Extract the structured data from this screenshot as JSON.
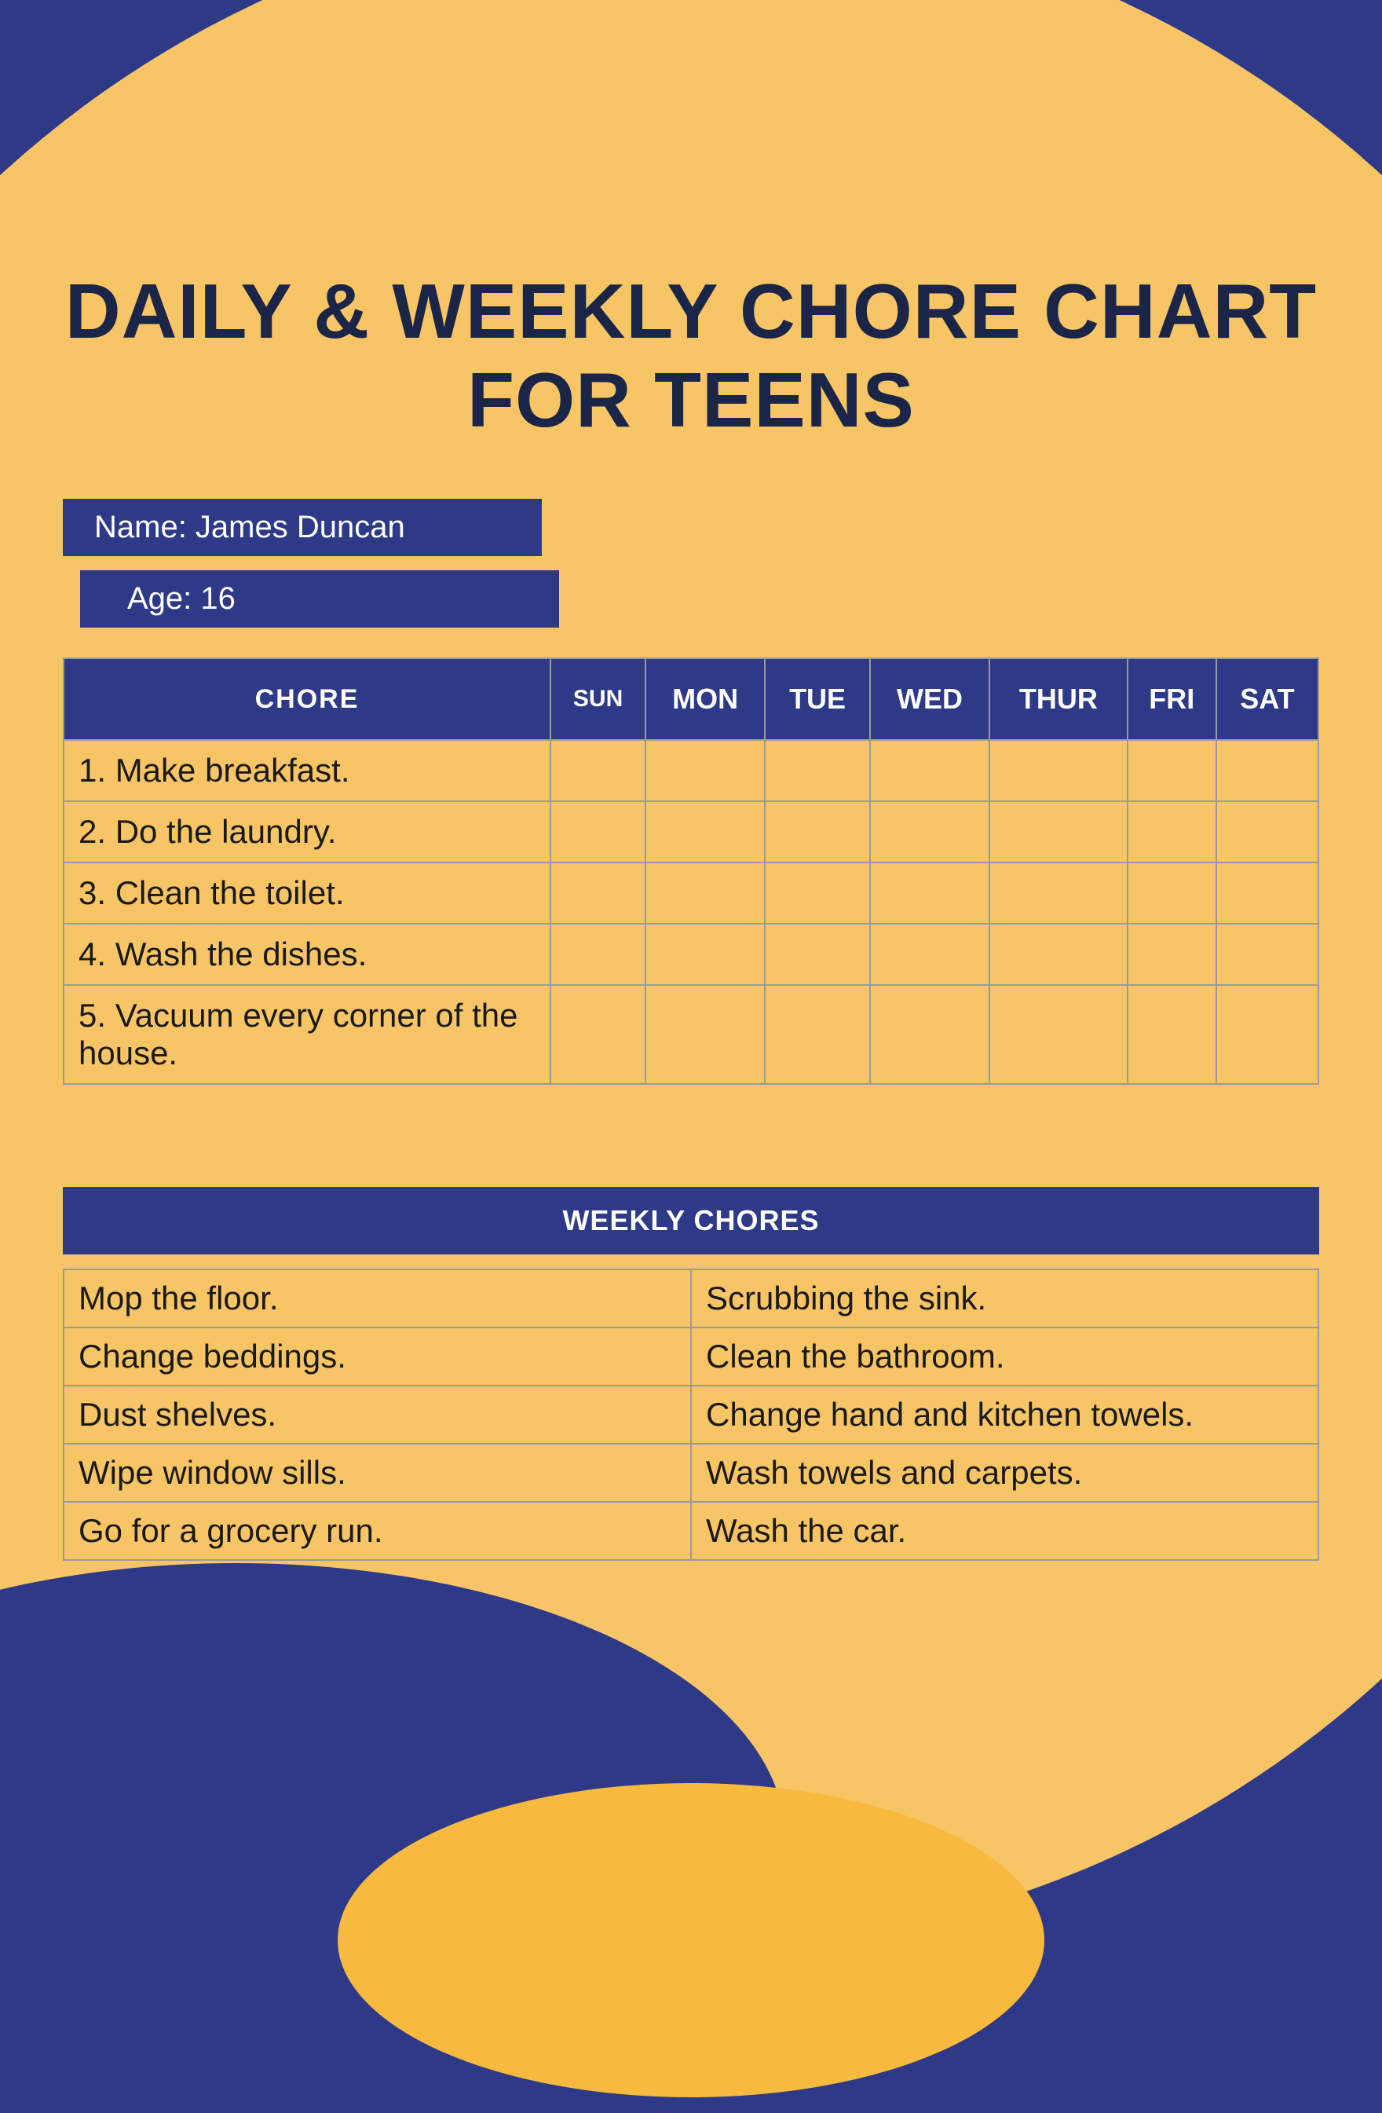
{
  "colors": {
    "navy": "#2e3a87",
    "orange": "#f8c566",
    "orange_dark": "#f7b93e",
    "title_text": "#1a2547",
    "cell_border": "#9a9a9a",
    "body_text": "#1a1a1a",
    "white": "#ffffff"
  },
  "typography": {
    "title_fontsize": 98,
    "title_weight": 900,
    "info_fontsize": 40,
    "header_fontsize": 36,
    "cell_fontsize": 42
  },
  "title": "DAILY & WEEKLY CHORE CHART FOR TEENS",
  "info": {
    "name_label": "Name: James Duncan",
    "age_label": "Age: 16"
  },
  "daily": {
    "columns": [
      "CHORE",
      "SUN",
      "MON",
      "TUE",
      "WED",
      "THUR",
      "FRI",
      "SAT"
    ],
    "chores": [
      "1. Make breakfast.",
      "2. Do the laundry.",
      "3. Clean the toilet.",
      "4. Wash the dishes.",
      "5. Vacuum every corner of the house."
    ]
  },
  "weekly": {
    "header": "WEEKLY CHORES",
    "rows": [
      [
        "Mop the floor.",
        "Scrubbing the sink."
      ],
      [
        "Change beddings.",
        "Clean the bathroom."
      ],
      [
        "Dust shelves.",
        "Change hand and kitchen towels."
      ],
      [
        "Wipe window sills.",
        "Wash towels and carpets."
      ],
      [
        "Go for a grocery run.",
        "Wash the car."
      ]
    ]
  }
}
